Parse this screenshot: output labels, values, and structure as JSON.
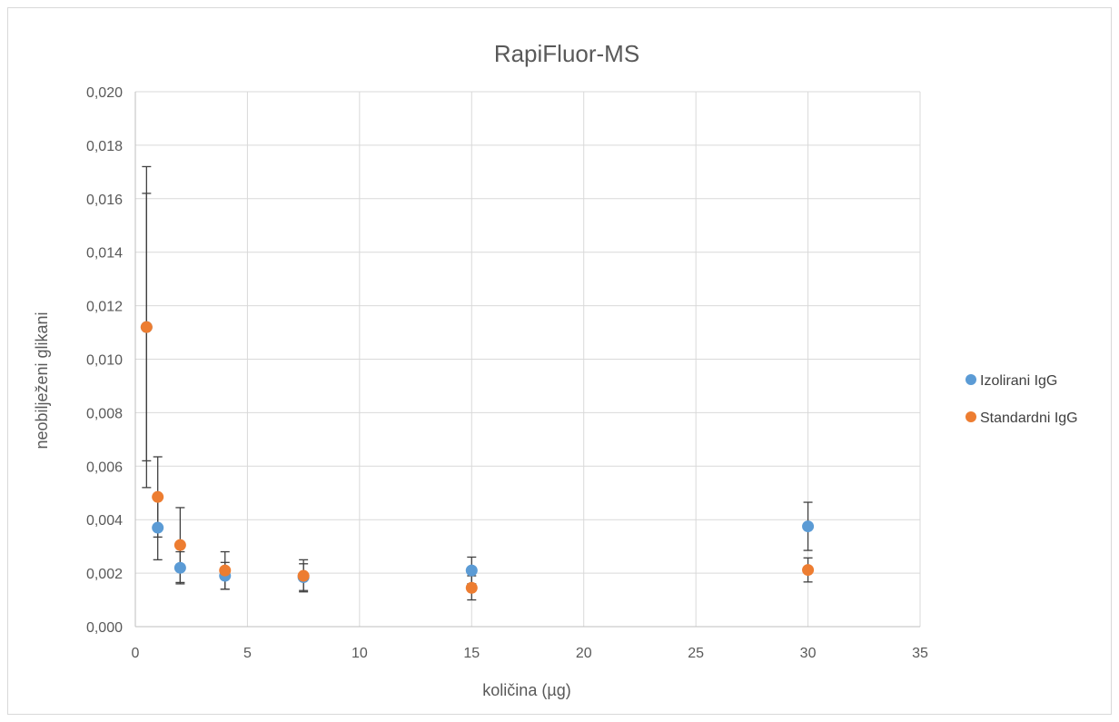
{
  "chart_data": {
    "type": "scatter",
    "title": "RapiFluor-MS",
    "xlabel": "količina (µg)",
    "ylabel": "neobilježeni glikani",
    "xlim": [
      0,
      35
    ],
    "ylim": [
      0,
      0.02
    ],
    "x_ticks": [
      "0",
      "5",
      "10",
      "15",
      "20",
      "25",
      "30",
      "35"
    ],
    "x_tick_values": [
      0,
      5,
      10,
      15,
      20,
      25,
      30,
      35
    ],
    "y_ticks": [
      "0,000",
      "0,002",
      "0,004",
      "0,006",
      "0,008",
      "0,010",
      "0,012",
      "0,014",
      "0,016",
      "0,018",
      "0,020"
    ],
    "y_tick_values": [
      0,
      0.002,
      0.004,
      0.006,
      0.008,
      0.01,
      0.012,
      0.014,
      0.016,
      0.018,
      0.02
    ],
    "grid": true,
    "legend_position": "right",
    "series": [
      {
        "name": "Izolirani IgG",
        "color": "#5b9bd5",
        "points": [
          {
            "x": 0.5,
            "y": 0.0112,
            "err": 0.005
          },
          {
            "x": 1,
            "y": 0.0037,
            "err": 0.0012
          },
          {
            "x": 2,
            "y": 0.0022,
            "err": 0.0006
          },
          {
            "x": 4,
            "y": 0.0019,
            "err": 0.0005
          },
          {
            "x": 7.5,
            "y": 0.00185,
            "err": 0.0005
          },
          {
            "x": 15,
            "y": 0.0021,
            "err": 0.0005
          },
          {
            "x": 30,
            "y": 0.00375,
            "err": 0.0009
          }
        ]
      },
      {
        "name": "Standardni IgG",
        "color": "#ed7d31",
        "points": [
          {
            "x": 0.5,
            "y": 0.0112,
            "err": 0.006
          },
          {
            "x": 1,
            "y": 0.00485,
            "err": 0.0015
          },
          {
            "x": 2,
            "y": 0.00305,
            "err": 0.0014
          },
          {
            "x": 4,
            "y": 0.0021,
            "err": 0.0007
          },
          {
            "x": 7.5,
            "y": 0.0019,
            "err": 0.0006
          },
          {
            "x": 15,
            "y": 0.00145,
            "err": 0.00045
          },
          {
            "x": 30,
            "y": 0.00212,
            "err": 0.00045
          }
        ]
      }
    ]
  }
}
